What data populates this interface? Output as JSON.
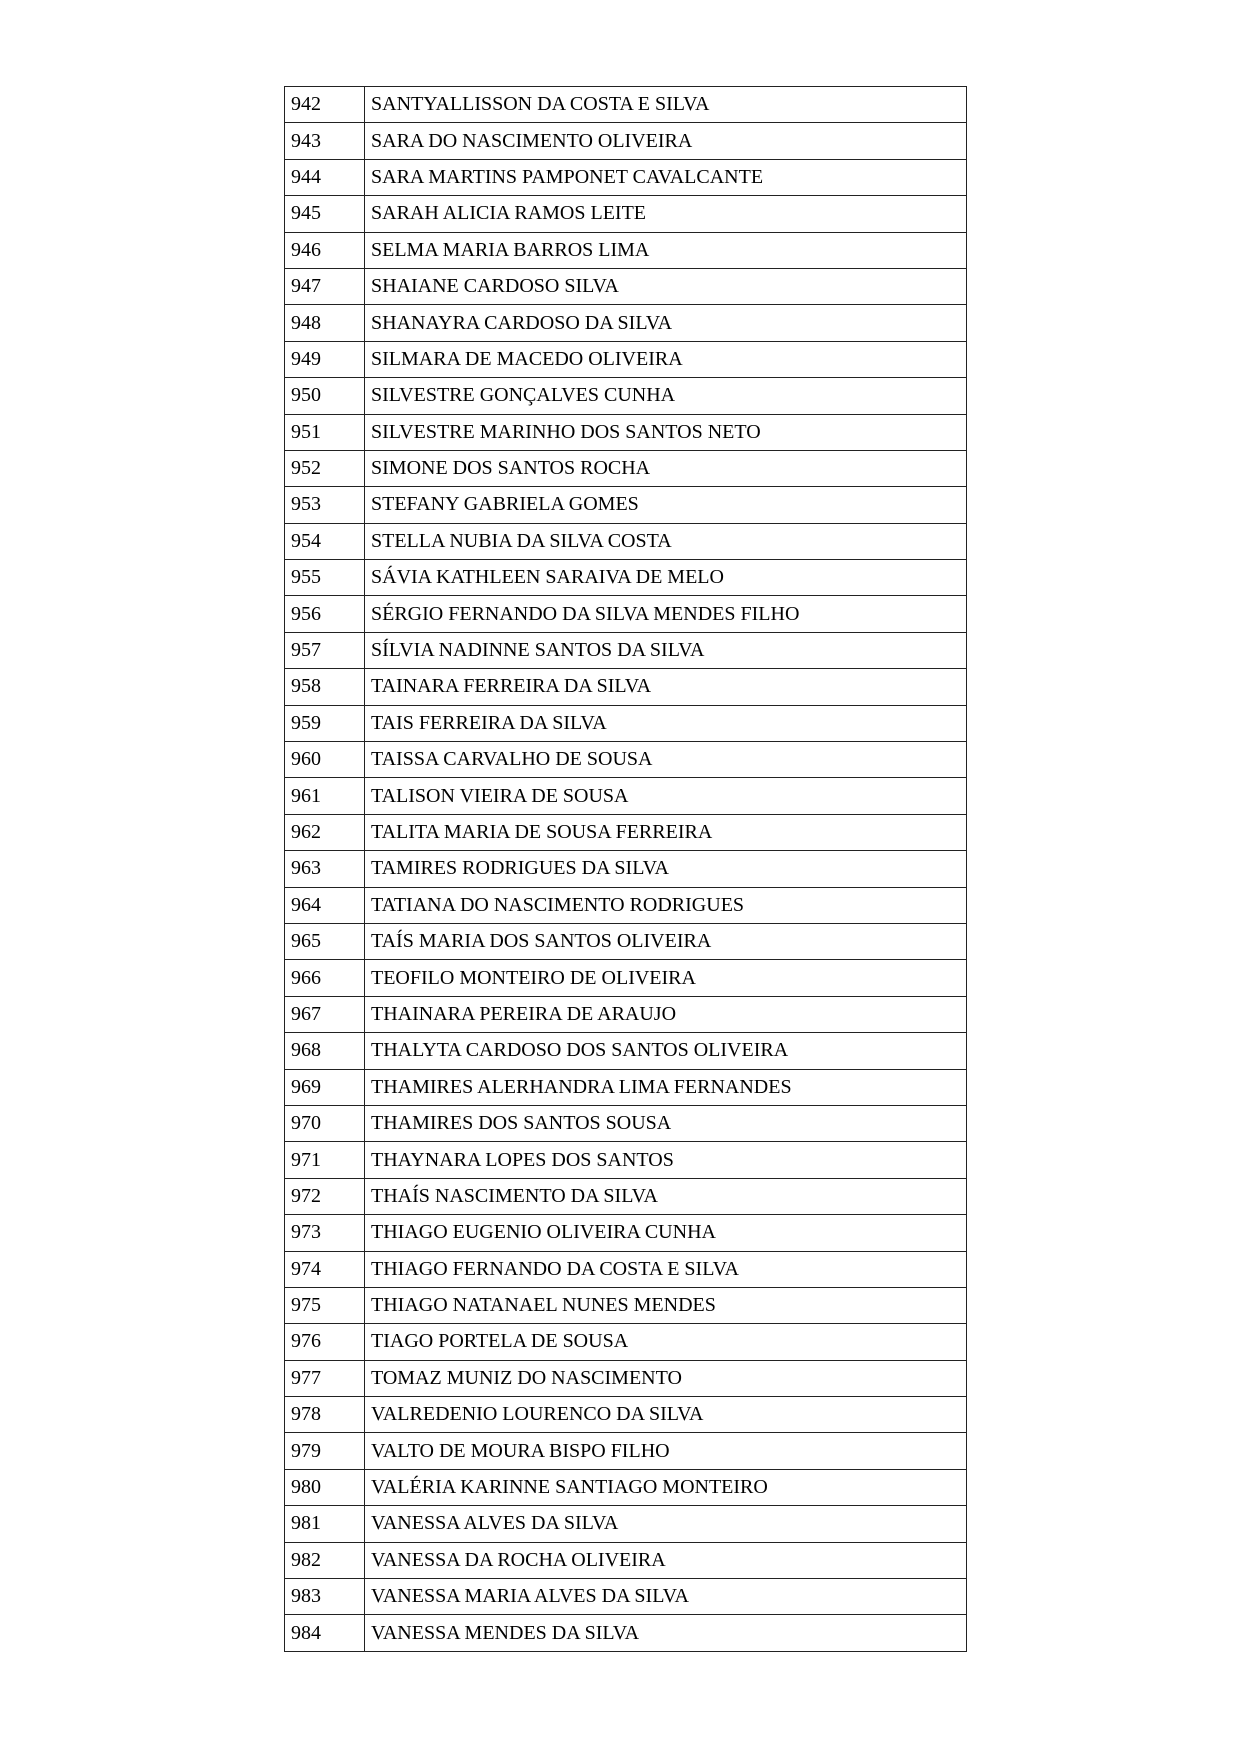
{
  "rows": [
    {
      "num": "942",
      "name": "SANTYALLISSON DA COSTA E SILVA"
    },
    {
      "num": "943",
      "name": "SARA DO NASCIMENTO OLIVEIRA"
    },
    {
      "num": "944",
      "name": "SARA MARTINS PAMPONET CAVALCANTE"
    },
    {
      "num": "945",
      "name": "SARAH ALICIA RAMOS LEITE"
    },
    {
      "num": "946",
      "name": "SELMA MARIA BARROS LIMA"
    },
    {
      "num": "947",
      "name": "SHAIANE CARDOSO SILVA"
    },
    {
      "num": "948",
      "name": "SHANAYRA CARDOSO DA SILVA"
    },
    {
      "num": "949",
      "name": "SILMARA DE MACEDO OLIVEIRA"
    },
    {
      "num": "950",
      "name": "SILVESTRE GONÇALVES CUNHA"
    },
    {
      "num": "951",
      "name": "SILVESTRE MARINHO DOS SANTOS NETO"
    },
    {
      "num": "952",
      "name": "SIMONE DOS SANTOS ROCHA"
    },
    {
      "num": "953",
      "name": "STEFANY GABRIELA GOMES"
    },
    {
      "num": "954",
      "name": "STELLA NUBIA DA SILVA COSTA"
    },
    {
      "num": "955",
      "name": "SÁVIA KATHLEEN SARAIVA DE MELO"
    },
    {
      "num": "956",
      "name": "SÉRGIO FERNANDO DA SILVA MENDES FILHO"
    },
    {
      "num": "957",
      "name": "SÍLVIA NADINNE SANTOS DA SILVA"
    },
    {
      "num": "958",
      "name": "TAINARA FERREIRA DA SILVA"
    },
    {
      "num": "959",
      "name": "TAIS FERREIRA DA SILVA"
    },
    {
      "num": "960",
      "name": "TAISSA CARVALHO DE SOUSA"
    },
    {
      "num": "961",
      "name": "TALISON VIEIRA DE SOUSA"
    },
    {
      "num": "962",
      "name": "TALITA MARIA DE SOUSA FERREIRA"
    },
    {
      "num": "963",
      "name": "TAMIRES RODRIGUES DA SILVA"
    },
    {
      "num": "964",
      "name": "TATIANA DO NASCIMENTO RODRIGUES"
    },
    {
      "num": "965",
      "name": "TAÍS MARIA DOS SANTOS OLIVEIRA"
    },
    {
      "num": "966",
      "name": "TEOFILO MONTEIRO DE OLIVEIRA"
    },
    {
      "num": "967",
      "name": "THAINARA PEREIRA DE ARAUJO"
    },
    {
      "num": "968",
      "name": "THALYTA CARDOSO DOS SANTOS OLIVEIRA"
    },
    {
      "num": "969",
      "name": "THAMIRES ALERHANDRA LIMA FERNANDES"
    },
    {
      "num": "970",
      "name": "THAMIRES DOS SANTOS SOUSA"
    },
    {
      "num": "971",
      "name": "THAYNARA LOPES DOS SANTOS"
    },
    {
      "num": "972",
      "name": "THAÍS NASCIMENTO DA SILVA"
    },
    {
      "num": "973",
      "name": "THIAGO EUGENIO OLIVEIRA CUNHA"
    },
    {
      "num": "974",
      "name": "THIAGO FERNANDO DA COSTA E SILVA"
    },
    {
      "num": "975",
      "name": "THIAGO NATANAEL NUNES MENDES"
    },
    {
      "num": "976",
      "name": "TIAGO PORTELA DE SOUSA"
    },
    {
      "num": "977",
      "name": "TOMAZ MUNIZ DO NASCIMENTO"
    },
    {
      "num": "978",
      "name": "VALREDENIO LOURENCO DA SILVA"
    },
    {
      "num": "979",
      "name": "VALTO DE MOURA BISPO FILHO"
    },
    {
      "num": "980",
      "name": "VALÉRIA KARINNE SANTIAGO MONTEIRO"
    },
    {
      "num": "981",
      "name": "VANESSA ALVES DA SILVA"
    },
    {
      "num": "982",
      "name": "VANESSA DA ROCHA OLIVEIRA"
    },
    {
      "num": "983",
      "name": "VANESSA MARIA ALVES DA SILVA"
    },
    {
      "num": "984",
      "name": "VANESSA MENDES DA SILVA"
    }
  ]
}
